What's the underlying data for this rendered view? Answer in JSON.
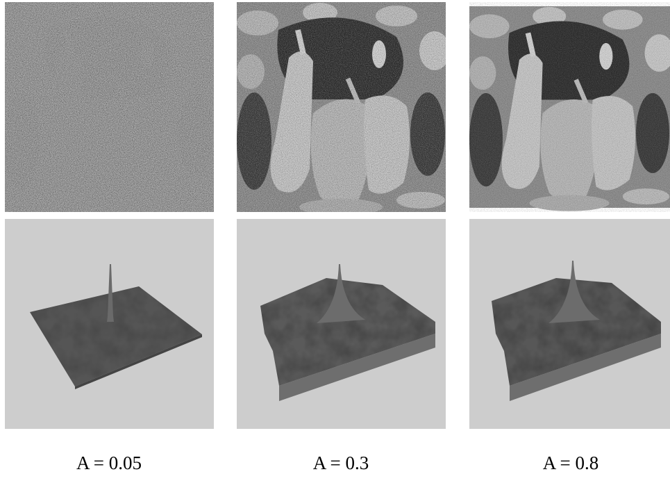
{
  "figure": {
    "panels": [
      {
        "caption": "A = 0.05"
      },
      {
        "caption": "A = 0.3"
      },
      {
        "caption": "A = 0.8"
      }
    ]
  }
}
